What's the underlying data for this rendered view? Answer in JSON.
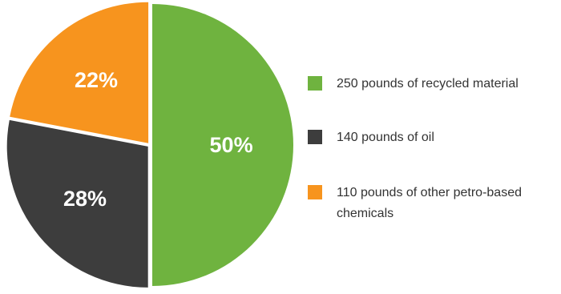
{
  "chart_data": {
    "type": "pie",
    "title": "",
    "categories": [
      "250 pounds of recycled material",
      "140 pounds of oil",
      "110 pounds of other petro-based chemicals"
    ],
    "values": [
      50,
      28,
      22
    ],
    "value_labels": [
      "50%",
      "28%",
      "22%"
    ],
    "colors": [
      "#6fb33f",
      "#3d3d3d",
      "#f7941e"
    ],
    "start_angle_deg": 0,
    "direction": "clockwise",
    "legend_position": "right"
  }
}
